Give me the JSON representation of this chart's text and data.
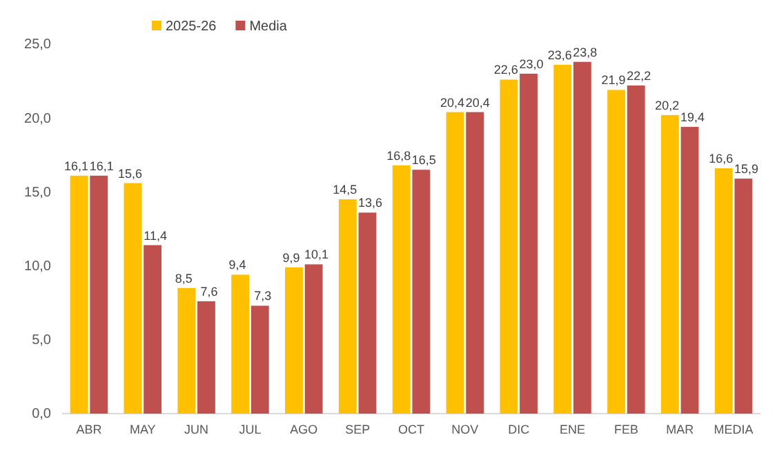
{
  "chart_data": {
    "type": "bar",
    "categories": [
      "ABR",
      "MAY",
      "JUN",
      "JUL",
      "AGO",
      "SEP",
      "OCT",
      "NOV",
      "DIC",
      "ENE",
      "FEB",
      "MAR",
      "MEDIA"
    ],
    "series": [
      {
        "name": "2025-26",
        "color": "#ffc000",
        "values": [
          16.1,
          15.6,
          8.5,
          9.4,
          9.9,
          14.5,
          16.8,
          20.4,
          22.6,
          23.6,
          21.9,
          20.2,
          16.6
        ],
        "value_labels": [
          "16,1",
          "15,6",
          "8,5",
          "9,4",
          "9,9",
          "14,5",
          "16,8",
          "20,4",
          "22,6",
          "23,6",
          "21,9",
          "20,2",
          "16,6"
        ]
      },
      {
        "name": "Media",
        "color": "#c0504d",
        "values": [
          16.1,
          11.4,
          7.6,
          7.3,
          10.1,
          13.6,
          16.5,
          20.4,
          23.0,
          23.8,
          22.2,
          19.4,
          15.9
        ],
        "value_labels": [
          "16,1",
          "11,4",
          "7,6",
          "7,3",
          "10,1",
          "13,6",
          "16,5",
          "20,4",
          "23,0",
          "23,8",
          "22,2",
          "19,4",
          "15,9"
        ]
      }
    ],
    "ylim": [
      0,
      25
    ],
    "yticks": [
      {
        "value": 0,
        "label": "0,0"
      },
      {
        "value": 5,
        "label": "5,0"
      },
      {
        "value": 10,
        "label": "10,0"
      },
      {
        "value": 15,
        "label": "15,0"
      },
      {
        "value": 20,
        "label": "20,0"
      },
      {
        "value": 25,
        "label": "25,0"
      }
    ],
    "legend": "top left"
  }
}
